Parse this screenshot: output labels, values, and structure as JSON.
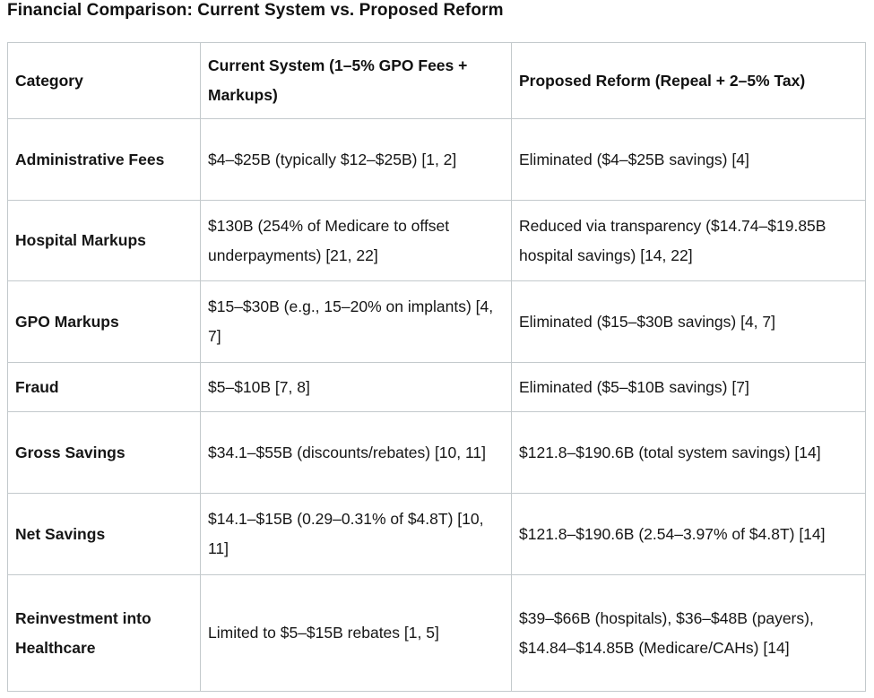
{
  "title": "Financial Comparison: Current System vs. Proposed Reform",
  "table": {
    "headers": {
      "category": "Category",
      "current": "Current System (1–5% GPO Fees + Markups)",
      "proposed": "Proposed Reform (Repeal + 2–5% Tax)"
    },
    "rows": [
      {
        "category": "Administrative Fees",
        "current": "$4–$25B (typically $12–$25B) [1, 2]",
        "proposed": "Eliminated ($4–$25B savings) [4]"
      },
      {
        "category": "Hospital Markups",
        "current": "$130B (254% of Medicare to offset underpayments) [21, 22]",
        "proposed": "Reduced via transparency ($14.74–$19.85B hospital savings) [14, 22]"
      },
      {
        "category": "GPO Markups",
        "current": "$15–$30B (e.g., 15–20% on implants) [4, 7]",
        "proposed": "Eliminated ($15–$30B savings) [4, 7]"
      },
      {
        "category": "Fraud",
        "current": "$5–$10B [7, 8]",
        "proposed": "Eliminated ($5–$10B savings) [7]"
      },
      {
        "category": "Gross Savings",
        "current": "$34.1–$55B (discounts/rebates) [10, 11]",
        "proposed": "$121.8–$190.6B (total system savings) [14]"
      },
      {
        "category": "Net Savings",
        "current": "$14.1–$15B (0.29–0.31% of $4.8T) [10, 11]",
        "proposed": "$121.8–$190.6B (2.54–3.97% of $4.8T) [14]"
      },
      {
        "category": "Reinvestment into Healthcare",
        "current": "Limited to $5–$15B rebates [1, 5]",
        "proposed": "$39–$66B (hospitals), $36–$48B (payers), $14.84–$14.85B (Medicare/CAHs) [14]"
      }
    ]
  },
  "colors": {
    "border": "#c3c9cc",
    "text": "#161616",
    "background": "#ffffff"
  }
}
